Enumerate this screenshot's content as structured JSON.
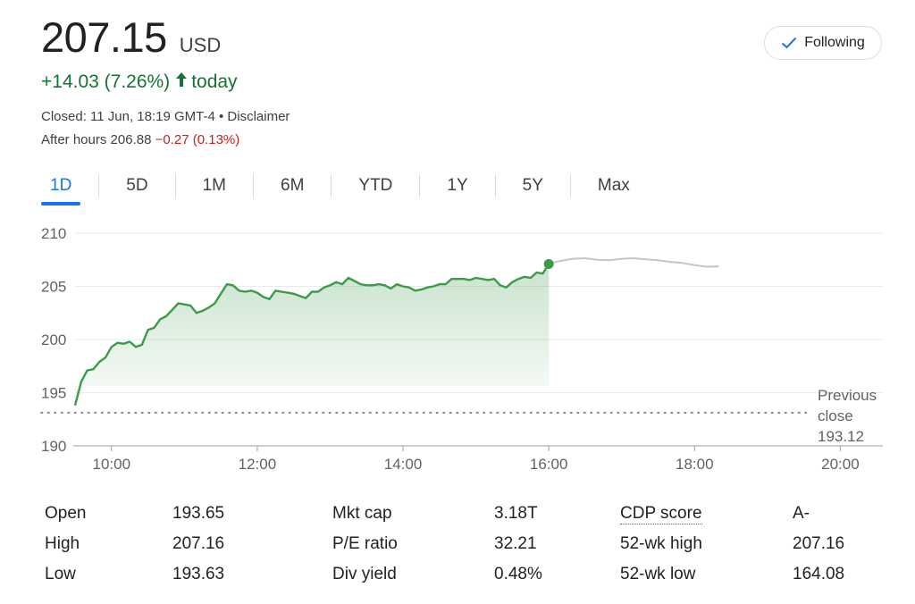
{
  "quote": {
    "price": "207.15",
    "currency": "USD",
    "change": "+14.03 (7.26%)",
    "change_suffix": "today",
    "closed": "Closed: 11 Jun, 18:19 GMT-4 • Disclaimer",
    "after_hours_label": "After hours 206.88",
    "after_hours_change": "−0.27 (0.13%)"
  },
  "follow_button": {
    "label": "Following"
  },
  "tabs": [
    {
      "label": "1D",
      "active": true
    },
    {
      "label": "5D"
    },
    {
      "label": "1M"
    },
    {
      "label": "6M"
    },
    {
      "label": "YTD"
    },
    {
      "label": "1Y"
    },
    {
      "label": "5Y"
    },
    {
      "label": "Max"
    }
  ],
  "colors": {
    "up": "#137333",
    "line": "#3d9a49",
    "after_hours_line": "#c4c7c5",
    "accent": "#1a73e8",
    "negative": "#c5221f"
  },
  "chart_data": {
    "type": "line",
    "xlabel": "",
    "ylabel": "",
    "ylim": [
      190,
      210
    ],
    "yticks": [
      "190",
      "195",
      "200",
      "205",
      "210"
    ],
    "xlim": [
      "09:30",
      "20:35"
    ],
    "xticks": [
      "10:00",
      "12:00",
      "14:00",
      "16:00",
      "18:00",
      "20:00"
    ],
    "grid": true,
    "previous_close": {
      "value": 193.12,
      "label_lines": [
        "Previous",
        "close",
        "193.12"
      ]
    },
    "series": [
      {
        "session": "regular",
        "x": [
          "09:30",
          "09:35",
          "09:40",
          "09:45",
          "09:50",
          "09:55",
          "10:00",
          "10:05",
          "10:10",
          "10:15",
          "10:20",
          "10:25",
          "10:30",
          "10:35",
          "10:40",
          "10:45",
          "10:50",
          "10:55",
          "11:00",
          "11:05",
          "11:10",
          "11:15",
          "11:20",
          "11:25",
          "11:30",
          "11:35",
          "11:40",
          "11:45",
          "11:50",
          "11:55",
          "12:00",
          "12:05",
          "12:10",
          "12:15",
          "12:20",
          "12:25",
          "12:30",
          "12:35",
          "12:40",
          "12:45",
          "12:50",
          "12:55",
          "13:00",
          "13:05",
          "13:10",
          "13:15",
          "13:20",
          "13:25",
          "13:30",
          "13:35",
          "13:40",
          "13:45",
          "13:50",
          "13:55",
          "14:00",
          "14:05",
          "14:10",
          "14:15",
          "14:20",
          "14:25",
          "14:30",
          "14:35",
          "14:40",
          "14:45",
          "14:50",
          "14:55",
          "15:00",
          "15:05",
          "15:10",
          "15:15",
          "15:20",
          "15:25",
          "15:30",
          "15:35",
          "15:40",
          "15:45",
          "15:50",
          "15:55",
          "16:00"
        ],
        "values": [
          193.8,
          196.0,
          197.1,
          197.2,
          197.9,
          198.3,
          199.3,
          199.7,
          199.6,
          199.8,
          199.3,
          199.5,
          200.9,
          201.1,
          201.9,
          202.2,
          202.8,
          203.4,
          203.3,
          203.2,
          202.5,
          202.7,
          203.0,
          203.4,
          204.3,
          205.2,
          205.1,
          204.6,
          204.5,
          204.6,
          204.4,
          204.0,
          203.8,
          204.6,
          204.5,
          204.4,
          204.3,
          204.1,
          203.9,
          204.5,
          204.5,
          204.9,
          205.1,
          205.4,
          205.2,
          205.8,
          205.5,
          205.2,
          205.1,
          205.1,
          205.2,
          205.1,
          204.8,
          205.2,
          205.0,
          204.9,
          204.6,
          204.7,
          204.9,
          205.0,
          205.2,
          205.2,
          205.7,
          205.7,
          205.7,
          205.6,
          205.8,
          205.7,
          205.6,
          205.7,
          205.1,
          204.9,
          205.4,
          205.7,
          205.9,
          205.8,
          206.3,
          206.2,
          207.1
        ]
      },
      {
        "session": "after_hours",
        "x": [
          "16:00",
          "16:10",
          "16:20",
          "16:30",
          "16:40",
          "16:50",
          "17:00",
          "17:10",
          "17:20",
          "17:30",
          "17:40",
          "17:50",
          "18:00",
          "18:10",
          "18:20"
        ],
        "values": [
          207.15,
          207.4,
          207.6,
          207.65,
          207.5,
          207.45,
          207.6,
          207.65,
          207.55,
          207.45,
          207.3,
          207.2,
          207.0,
          206.85,
          206.88
        ]
      }
    ]
  },
  "stats": {
    "col1": [
      {
        "label": "Open",
        "value": "193.65"
      },
      {
        "label": "High",
        "value": "207.16"
      },
      {
        "label": "Low",
        "value": "193.63"
      }
    ],
    "col2": [
      {
        "label": "Mkt cap",
        "value": "3.18T"
      },
      {
        "label": "P/E ratio",
        "value": "32.21"
      },
      {
        "label": "Div yield",
        "value": "0.48%"
      }
    ],
    "col3": [
      {
        "label": "CDP score",
        "value": "A-"
      },
      {
        "label": "52-wk high",
        "value": "207.16"
      },
      {
        "label": "52-wk low",
        "value": "164.08"
      }
    ]
  }
}
